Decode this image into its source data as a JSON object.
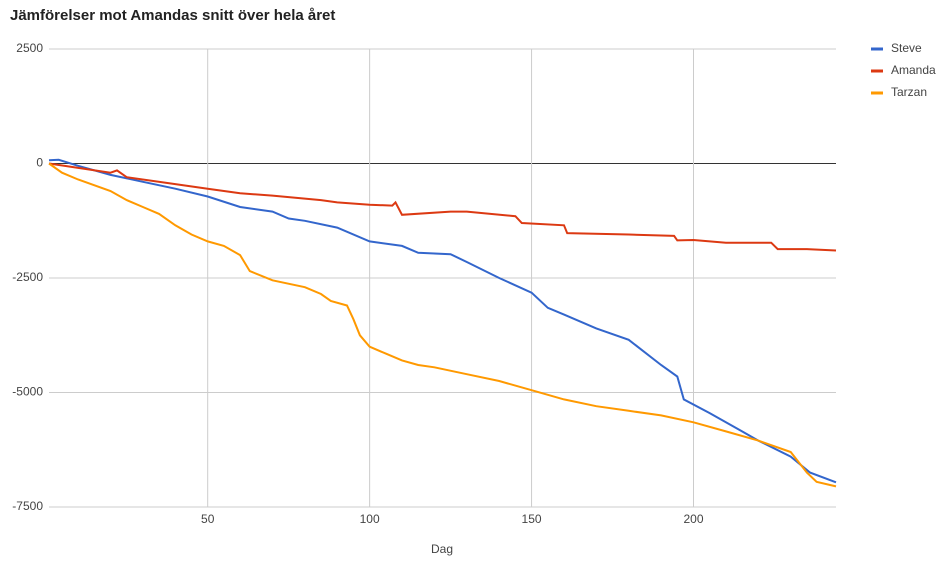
{
  "chart_data": {
    "type": "line",
    "title": "Jämförelser mot Amandas snitt över hela året",
    "x_label": "Dag",
    "xlim": [
      1,
      244
    ],
    "xticks": [
      50,
      100,
      150,
      200
    ],
    "ylim": [
      -7500,
      2500
    ],
    "yticks": [
      -7500,
      -5000,
      -2500,
      0,
      2500
    ],
    "grid": true,
    "legend": "right",
    "series": [
      {
        "name": "Steve",
        "color": "#3366cc",
        "x": [
          1,
          4,
          10,
          20,
          30,
          40,
          50,
          60,
          70,
          75,
          80,
          90,
          100,
          110,
          115,
          125,
          130,
          140,
          150,
          155,
          160,
          170,
          180,
          190,
          195,
          197,
          205,
          215,
          220,
          230,
          236,
          244
        ],
        "values": [
          70,
          80,
          -50,
          -250,
          -400,
          -550,
          -720,
          -950,
          -1050,
          -1200,
          -1250,
          -1400,
          -1700,
          -1800,
          -1950,
          -1980,
          -2150,
          -2500,
          -2820,
          -3150,
          -3300,
          -3600,
          -3850,
          -4400,
          -4650,
          -5150,
          -5450,
          -5850,
          -6050,
          -6400,
          -6750,
          -6960
        ]
      },
      {
        "name": "Amanda",
        "color": "#dc3912",
        "x": [
          1,
          20,
          22,
          25,
          40,
          50,
          60,
          70,
          85,
          90,
          100,
          107,
          108,
          110,
          125,
          130,
          145,
          147,
          160,
          161,
          180,
          194,
          195,
          200,
          210,
          224,
          226,
          235,
          244
        ],
        "values": [
          0,
          -200,
          -150,
          -300,
          -450,
          -550,
          -650,
          -700,
          -800,
          -850,
          -900,
          -920,
          -850,
          -1120,
          -1050,
          -1050,
          -1150,
          -1300,
          -1350,
          -1520,
          -1550,
          -1580,
          -1680,
          -1670,
          -1730,
          -1730,
          -1870,
          -1870,
          -1900
        ]
      },
      {
        "name": "Tarzan",
        "color": "#ff9900",
        "x": [
          1,
          5,
          10,
          20,
          25,
          30,
          35,
          40,
          45,
          50,
          55,
          60,
          63,
          70,
          80,
          85,
          88,
          93,
          95,
          97,
          100,
          105,
          110,
          115,
          120,
          130,
          140,
          150,
          160,
          170,
          180,
          190,
          200,
          210,
          220,
          230,
          235,
          238,
          244
        ],
        "values": [
          0,
          -200,
          -350,
          -600,
          -800,
          -950,
          -1100,
          -1350,
          -1550,
          -1700,
          -1800,
          -2000,
          -2350,
          -2550,
          -2700,
          -2850,
          -3000,
          -3100,
          -3400,
          -3750,
          -4000,
          -4150,
          -4300,
          -4400,
          -4450,
          -4600,
          -4750,
          -4950,
          -5150,
          -5300,
          -5400,
          -5500,
          -5650,
          -5850,
          -6050,
          -6300,
          -6750,
          -6950,
          -7050
        ]
      }
    ]
  }
}
